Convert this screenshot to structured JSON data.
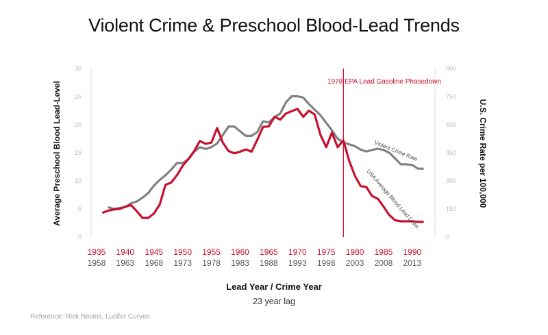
{
  "title": "Violent Crime & Preschool Blood-Lead Trends",
  "reference": "Reference: Rick Nevins, Lucifer Curves",
  "colors": {
    "lead": "#c8102e",
    "crime": "#808080"
  },
  "chart_data": {
    "type": "line",
    "title": "Violent Crime & Preschool Blood-Lead Trends",
    "xlabel": "Lead Year / Crime Year",
    "xlabel_sub": "23 year lag",
    "ylabel_left": "Average Preschool Blood Lead-Level",
    "ylabel_right": "U.S. Crime Rate per 100,000",
    "xlim": [
      1935,
      1993
    ],
    "ylim_left": [
      0,
      30
    ],
    "ylim_right": [
      0,
      900
    ],
    "yticks_left": [
      "0",
      "5",
      "10",
      "15",
      "20",
      "25",
      "30"
    ],
    "yticks_right": [
      "0",
      "150",
      "300",
      "450",
      "600",
      "750",
      "900"
    ],
    "xticks_lead": [
      "1935",
      "1940",
      "1945",
      "1950",
      "1955",
      "1960",
      "1965",
      "1970",
      "1975",
      "1980",
      "1985",
      "1990"
    ],
    "xticks_crime": [
      "1958",
      "1963",
      "1968",
      "1973",
      "1978",
      "1983",
      "1988",
      "1993",
      "1998",
      "2003",
      "2008",
      "2013"
    ],
    "grid": false,
    "annotations": [
      {
        "text": "1978 EPA Lead Gasoline Phasedown",
        "x": 1978
      },
      {
        "text": "Violent Crime Rate",
        "series": "crime"
      },
      {
        "text": "USA Average Blood Lead Level",
        "series": "lead"
      }
    ],
    "series": [
      {
        "name": "USA Average Blood Lead Level",
        "axis": "left",
        "x": [
          1936,
          1937,
          1938,
          1939,
          1940,
          1941,
          1942,
          1943,
          1944,
          1945,
          1946,
          1947,
          1948,
          1949,
          1950,
          1951,
          1952,
          1953,
          1954,
          1955,
          1956,
          1957,
          1958,
          1959,
          1960,
          1961,
          1962,
          1963,
          1964,
          1965,
          1966,
          1967,
          1968,
          1969,
          1970,
          1971,
          1972,
          1973,
          1974,
          1975,
          1976,
          1977,
          1978,
          1979,
          1980,
          1981,
          1982,
          1983,
          1984,
          1985,
          1986,
          1987,
          1988,
          1989,
          1990,
          1991,
          1992
        ],
        "values": [
          4.3,
          4.7,
          4.9,
          5.0,
          5.4,
          5.7,
          4.6,
          3.4,
          3.4,
          4.2,
          5.8,
          9.3,
          9.7,
          11.0,
          12.7,
          13.9,
          15.3,
          17.1,
          16.6,
          16.8,
          19.4,
          16.8,
          15.3,
          14.9,
          15.2,
          15.6,
          15.2,
          17.3,
          19.6,
          19.7,
          21.4,
          20.9,
          22.0,
          22.4,
          22.8,
          21.4,
          22.5,
          21.8,
          18.2,
          16.0,
          18.6,
          16.0,
          17.2,
          13.6,
          10.9,
          9.1,
          8.9,
          7.3,
          6.8,
          5.4,
          3.9,
          3.0,
          2.8,
          2.8,
          2.8,
          2.7,
          2.7
        ]
      },
      {
        "name": "Violent Crime Rate",
        "axis": "right",
        "x": [
          1937,
          1938,
          1939,
          1940,
          1941,
          1942,
          1943,
          1944,
          1945,
          1946,
          1947,
          1948,
          1949,
          1950,
          1951,
          1952,
          1953,
          1954,
          1955,
          1956,
          1957,
          1958,
          1959,
          1960,
          1961,
          1962,
          1963,
          1964,
          1965,
          1966,
          1967,
          1968,
          1969,
          1970,
          1971,
          1972,
          1973,
          1974,
          1975,
          1976,
          1977,
          1978,
          1979,
          1980,
          1981,
          1982,
          1983,
          1984,
          1985,
          1986,
          1987,
          1988,
          1989,
          1990,
          1991,
          1992
        ],
        "values": [
          160,
          150,
          155,
          160,
          180,
          190,
          210,
          235,
          275,
          305,
          330,
          360,
          395,
          395,
          415,
          455,
          480,
          470,
          480,
          500,
          545,
          590,
          590,
          565,
          540,
          540,
          560,
          618,
          612,
          640,
          660,
          720,
          752,
          752,
          745,
          710,
          680,
          650,
          610,
          570,
          525,
          505,
          495,
          485,
          467,
          457,
          465,
          472,
          465,
          450,
          420,
          388,
          388,
          385,
          365,
          365
        ]
      }
    ]
  }
}
